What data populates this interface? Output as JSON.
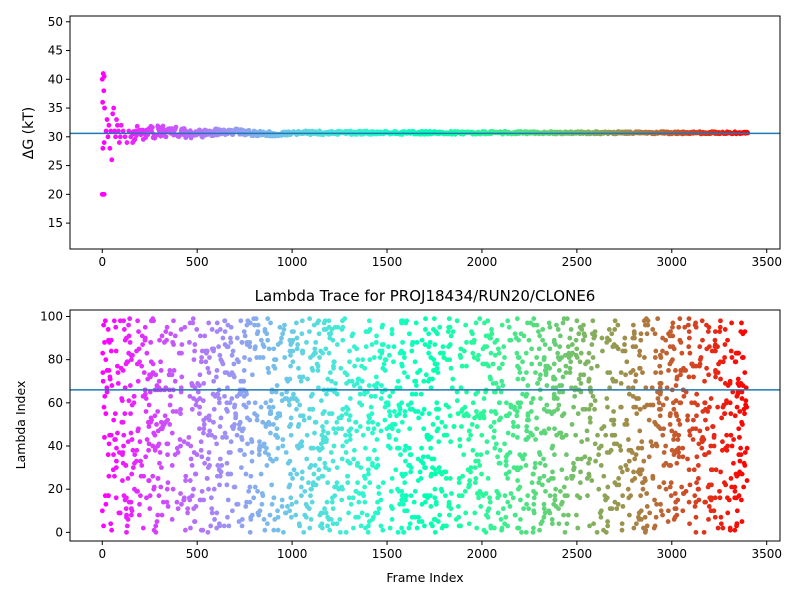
{
  "chart_data": [
    {
      "type": "scatter",
      "title": "",
      "xlabel": "",
      "ylabel": "ΔG (kT)",
      "xlim": [
        -170,
        3570
      ],
      "ylim": [
        10.5,
        51
      ],
      "xticks": [
        "0",
        "500",
        "1000",
        "1500",
        "2000",
        "2500",
        "3000",
        "3500"
      ],
      "yticks": [
        "15",
        "20",
        "25",
        "30",
        "35",
        "40",
        "45",
        "50"
      ],
      "hline": 30.6,
      "colormap": "rainbow (red at frame 0 → violet at last frame)",
      "series": [
        {
          "points_early": [
            [
              0,
              20
            ],
            [
              5,
              20
            ],
            [
              10,
              20
            ],
            [
              0,
              40
            ],
            [
              5,
              41
            ],
            [
              10,
              40.5
            ],
            [
              2,
              36
            ],
            [
              8,
              38
            ],
            [
              12,
              35
            ],
            [
              3,
              28
            ],
            [
              10,
              29
            ],
            [
              20,
              31
            ],
            [
              25,
              33
            ],
            [
              30,
              30
            ],
            [
              35,
              32
            ],
            [
              40,
              28
            ],
            [
              45,
              31
            ],
            [
              50,
              26
            ],
            [
              55,
              34
            ],
            [
              60,
              35
            ],
            [
              65,
              31
            ],
            [
              70,
              30
            ],
            [
              75,
              33
            ],
            [
              80,
              32
            ],
            [
              85,
              31
            ],
            [
              90,
              29
            ],
            [
              95,
              30
            ],
            [
              100,
              32
            ],
            [
              110,
              31
            ],
            [
              120,
              30
            ],
            [
              130,
              29
            ],
            [
              140,
              31
            ],
            [
              150,
              30
            ],
            [
              160,
              30.5
            ]
          ],
          "envelope": {
            "x": [
              160,
              250,
              350,
              450,
              500,
              600,
              700,
              800,
              900,
              1000,
              1500,
              2000,
              2500,
              3000,
              3400
            ],
            "y_mid": [
              30.5,
              30.8,
              31.0,
              30.6,
              30.5,
              30.8,
              30.9,
              30.6,
              30.5,
              30.7,
              30.7,
              30.7,
              30.7,
              30.7,
              30.7
            ],
            "half_width": [
              1.5,
              1.2,
              1.0,
              0.8,
              0.7,
              0.6,
              0.5,
              0.45,
              0.4,
              0.35,
              0.3,
              0.25,
              0.22,
              0.2,
              0.18
            ]
          },
          "x_max": 3400
        }
      ]
    },
    {
      "type": "scatter",
      "title": "Lambda Trace for PROJ18434/RUN20/CLONE6",
      "xlabel": "Frame Index",
      "ylabel": "Lambda Index",
      "xlim": [
        -170,
        3570
      ],
      "ylim": [
        -4,
        103
      ],
      "xticks": [
        "0",
        "500",
        "1000",
        "1500",
        "2000",
        "2500",
        "3000",
        "3500"
      ],
      "yticks": [
        "0",
        "20",
        "40",
        "60",
        "80",
        "100"
      ],
      "hline": 66,
      "colormap": "rainbow (red at frame 0 → violet at last frame)",
      "series": [
        {
          "frames": [
            0,
            3400
          ],
          "lambda_range": [
            0,
            99
          ],
          "point_count": 2400,
          "distribution": "approximately uniform over frames and lambda indices"
        }
      ]
    }
  ]
}
